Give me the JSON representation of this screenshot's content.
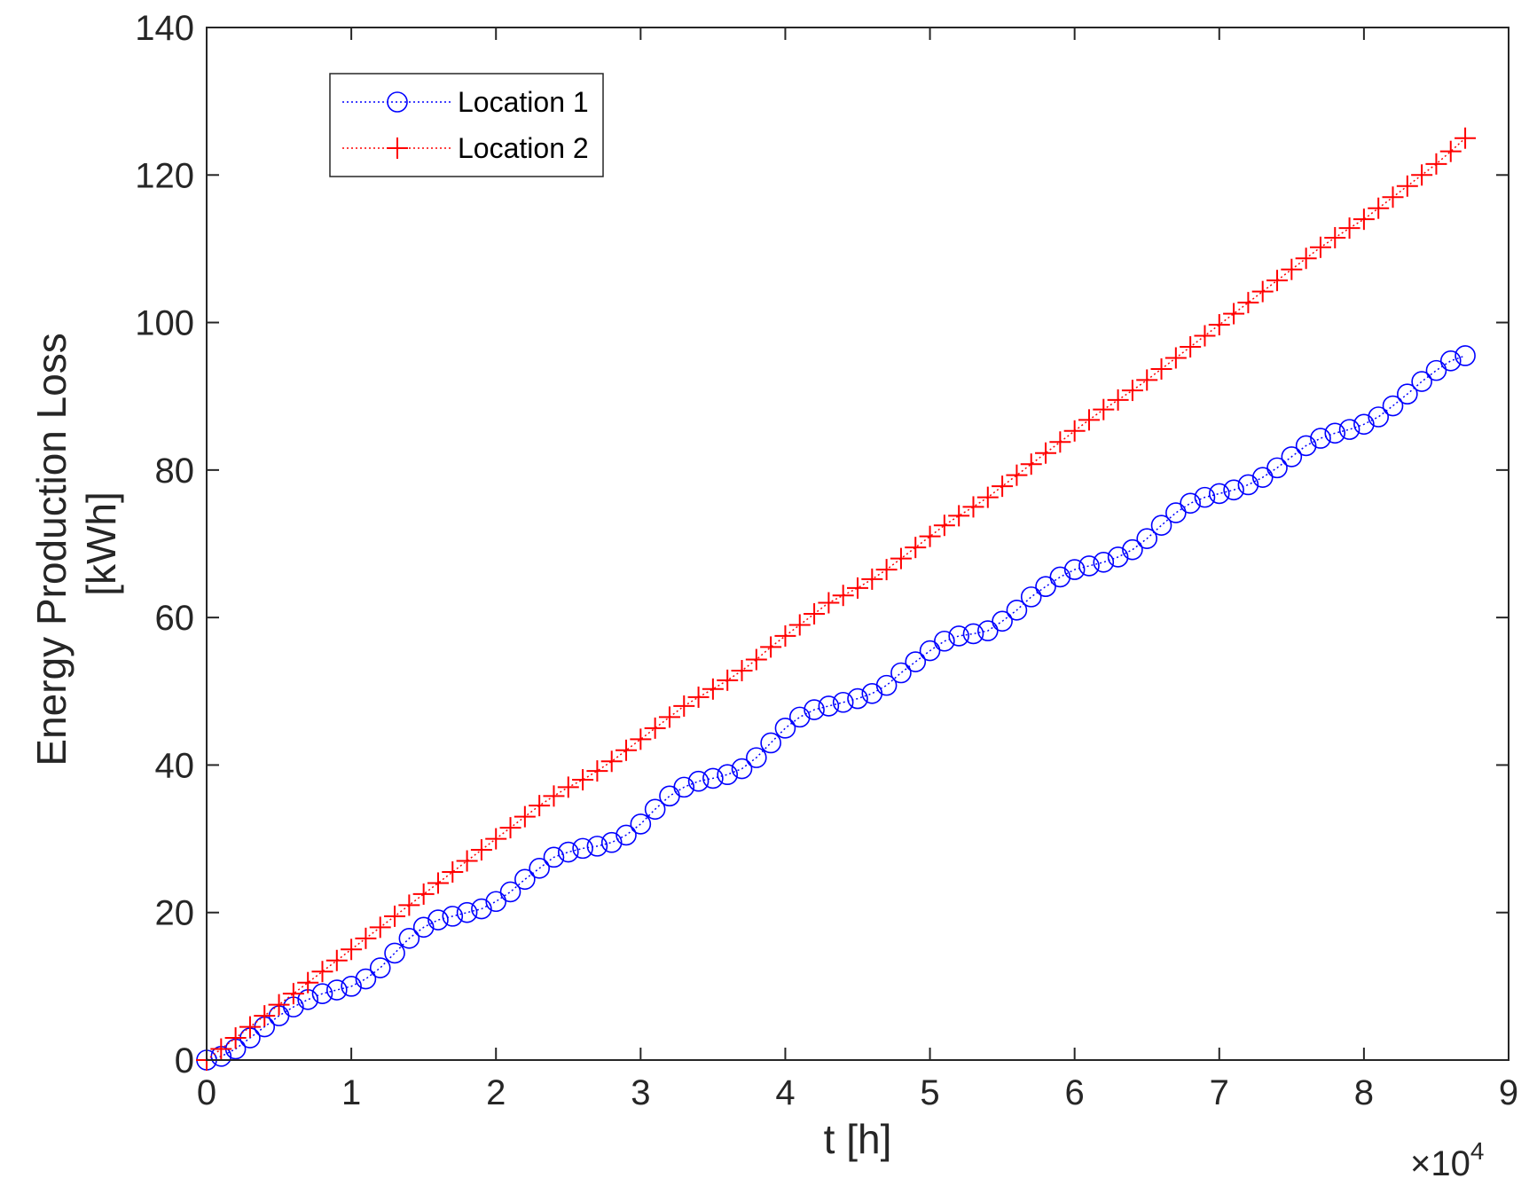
{
  "chart_data": {
    "type": "line",
    "xlabel": "t [h]",
    "ylabel_lines": [
      "Energy Production Loss",
      "[kWh]"
    ],
    "x_multiplier_label": "×10",
    "x_multiplier_exponent": "4",
    "xlim": [
      0,
      9
    ],
    "ylim": [
      0,
      140
    ],
    "x_ticks": [
      0,
      1,
      2,
      3,
      4,
      5,
      6,
      7,
      8,
      9
    ],
    "x_tick_labels": [
      "0",
      "1",
      "2",
      "3",
      "4",
      "5",
      "6",
      "7",
      "8",
      "9"
    ],
    "y_ticks": [
      0,
      20,
      40,
      60,
      80,
      100,
      120,
      140
    ],
    "y_tick_labels": [
      "0",
      "20",
      "40",
      "60",
      "80",
      "100",
      "120",
      "140"
    ],
    "grid": false,
    "legend_position": "top-left",
    "x_unit_note": "x values in units of 10^4 h",
    "series": [
      {
        "name": "Location 1",
        "color": "#0000ff",
        "marker": "circle",
        "line_style": "dotted",
        "x": [
          0,
          0.1,
          0.2,
          0.3,
          0.4,
          0.5,
          0.6,
          0.7,
          0.8,
          0.9,
          1.0,
          1.1,
          1.2,
          1.3,
          1.4,
          1.5,
          1.6,
          1.7,
          1.8,
          1.9,
          2.0,
          2.1,
          2.2,
          2.3,
          2.4,
          2.5,
          2.6,
          2.7,
          2.8,
          2.9,
          3.0,
          3.1,
          3.2,
          3.3,
          3.4,
          3.5,
          3.6,
          3.7,
          3.8,
          3.9,
          4.0,
          4.1,
          4.2,
          4.3,
          4.4,
          4.5,
          4.6,
          4.7,
          4.8,
          4.9,
          5.0,
          5.1,
          5.2,
          5.3,
          5.4,
          5.5,
          5.6,
          5.7,
          5.8,
          5.9,
          6.0,
          6.1,
          6.2,
          6.3,
          6.4,
          6.5,
          6.6,
          6.7,
          6.8,
          6.9,
          7.0,
          7.1,
          7.2,
          7.3,
          7.4,
          7.5,
          7.6,
          7.7,
          7.8,
          7.9,
          8.0,
          8.1,
          8.2,
          8.3,
          8.4,
          8.5,
          8.6,
          8.7
        ],
        "y": [
          0,
          0.5,
          1.5,
          3.0,
          4.5,
          6.0,
          7.2,
          8.2,
          9.0,
          9.5,
          10.0,
          11.0,
          12.5,
          14.5,
          16.5,
          18.0,
          19.0,
          19.5,
          20.0,
          20.5,
          21.5,
          22.8,
          24.5,
          26.0,
          27.5,
          28.2,
          28.7,
          29.0,
          29.5,
          30.5,
          32.0,
          34.0,
          35.8,
          37.0,
          37.8,
          38.2,
          38.7,
          39.5,
          41.0,
          43.0,
          45.0,
          46.5,
          47.5,
          48.0,
          48.5,
          49.0,
          49.7,
          50.8,
          52.5,
          54.0,
          55.5,
          56.8,
          57.5,
          57.8,
          58.2,
          59.5,
          61.0,
          62.8,
          64.2,
          65.5,
          66.5,
          67.0,
          67.5,
          68.2,
          69.2,
          70.7,
          72.5,
          74.2,
          75.5,
          76.3,
          76.8,
          77.3,
          78.0,
          79.0,
          80.3,
          81.8,
          83.3,
          84.3,
          85.0,
          85.5,
          86.2,
          87.2,
          88.7,
          90.3,
          92.0,
          93.5,
          94.8,
          95.5
        ]
      },
      {
        "name": "Location 2",
        "color": "#ff0000",
        "marker": "plus",
        "line_style": "dotted",
        "x": [
          0,
          0.1,
          0.2,
          0.3,
          0.4,
          0.5,
          0.6,
          0.7,
          0.8,
          0.9,
          1.0,
          1.1,
          1.2,
          1.3,
          1.4,
          1.5,
          1.6,
          1.7,
          1.8,
          1.9,
          2.0,
          2.1,
          2.2,
          2.3,
          2.4,
          2.5,
          2.6,
          2.7,
          2.8,
          2.9,
          3.0,
          3.1,
          3.2,
          3.3,
          3.4,
          3.5,
          3.6,
          3.7,
          3.8,
          3.9,
          4.0,
          4.1,
          4.2,
          4.3,
          4.4,
          4.5,
          4.6,
          4.7,
          4.8,
          4.9,
          5.0,
          5.1,
          5.2,
          5.3,
          5.4,
          5.5,
          5.6,
          5.7,
          5.8,
          5.9,
          6.0,
          6.1,
          6.2,
          6.3,
          6.4,
          6.5,
          6.6,
          6.7,
          6.8,
          6.9,
          7.0,
          7.1,
          7.2,
          7.3,
          7.4,
          7.5,
          7.6,
          7.7,
          7.8,
          7.9,
          8.0,
          8.1,
          8.2,
          8.3,
          8.4,
          8.5,
          8.6,
          8.7
        ],
        "y": [
          0,
          1.5,
          3.0,
          4.5,
          6.0,
          7.5,
          9.0,
          10.5,
          12.0,
          13.5,
          15.0,
          16.5,
          18.0,
          19.5,
          21.0,
          22.5,
          24.0,
          25.5,
          27.0,
          28.5,
          30.0,
          31.5,
          33.0,
          34.5,
          35.8,
          37.0,
          38.0,
          39.2,
          40.5,
          42.0,
          43.5,
          45.0,
          46.5,
          48.0,
          49.2,
          50.3,
          51.5,
          52.8,
          54.3,
          56.0,
          57.5,
          59.0,
          60.5,
          62.0,
          63.0,
          64.0,
          65.2,
          66.5,
          68.0,
          69.5,
          71.0,
          72.5,
          73.8,
          75.0,
          76.3,
          77.8,
          79.3,
          80.8,
          82.3,
          83.8,
          85.3,
          86.8,
          88.2,
          89.5,
          90.8,
          92.2,
          93.7,
          95.2,
          96.7,
          98.2,
          99.7,
          101.2,
          102.7,
          104.2,
          105.7,
          107.2,
          108.7,
          110.2,
          111.5,
          112.8,
          114.0,
          115.5,
          117.0,
          118.5,
          120.0,
          121.5,
          123.2,
          125.0
        ]
      }
    ]
  }
}
